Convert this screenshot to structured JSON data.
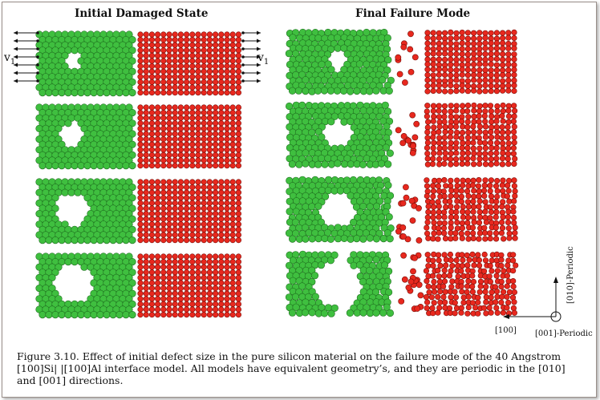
{
  "figure": {
    "heading_left": "Initial Damaged State",
    "heading_right": "Final Failure Mode",
    "velocity_label": "v",
    "velocity_subscript": "1",
    "axis_x_label": "[100]",
    "axis_y_label": "[010]-Periodic",
    "axis_z_label": "[001]-Periodic",
    "caption": "Figure 3.10. Effect of initial defect size in the pure silicon material on the failure mode of the 40 Angstrom [100]Si| |[100]Al interface model.  All models have equivalent geometry’s, and they are periodic in the [010] and [001] directions."
  },
  "colors": {
    "silicon": "#3fbf3f",
    "silicon_edge": "#1f6f1f",
    "aluminum": "#e8281e",
    "aluminum_edge": "#7a0e08",
    "frame_border": "#9a8f8a"
  },
  "defect_levels": [
    1,
    2,
    3,
    4
  ]
}
